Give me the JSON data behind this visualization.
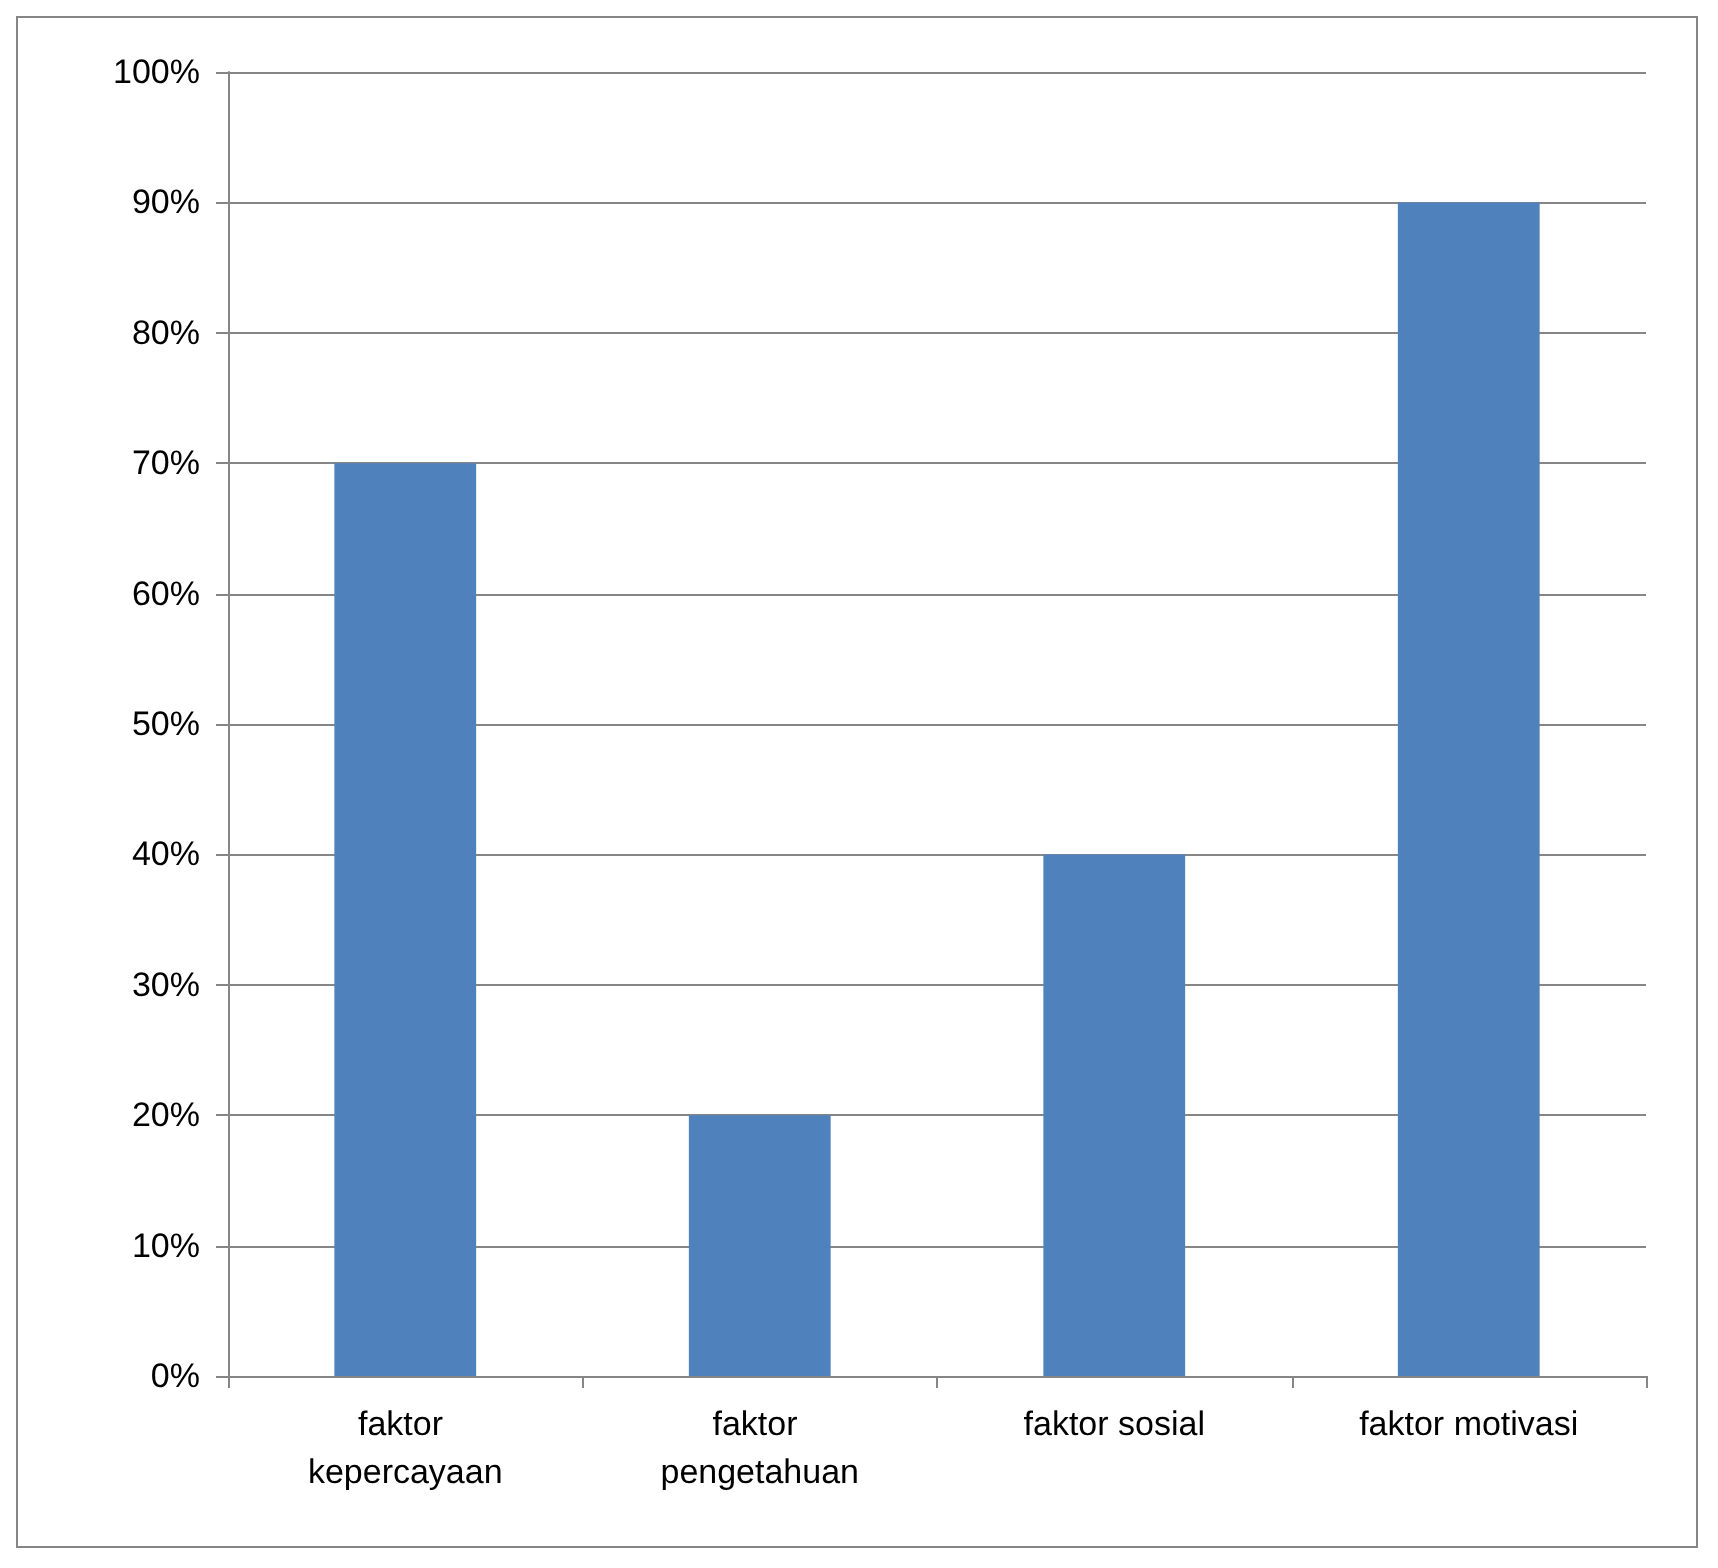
{
  "chart_data": {
    "type": "bar",
    "categories": [
      "faktor kepercayaan",
      "faktor pengetahuan",
      "faktor sosial",
      "faktor motivasi"
    ],
    "values": [
      70,
      20,
      40,
      90
    ],
    "color": "#4f81bd",
    "ylim": [
      0,
      100
    ],
    "yticks": [
      {
        "value": 0,
        "label": "0%"
      },
      {
        "value": 10,
        "label": "10%"
      },
      {
        "value": 20,
        "label": "20%"
      },
      {
        "value": 30,
        "label": "30%"
      },
      {
        "value": 40,
        "label": "40%"
      },
      {
        "value": 50,
        "label": "50%"
      },
      {
        "value": 60,
        "label": "60%"
      },
      {
        "value": 70,
        "label": "70%"
      },
      {
        "value": 80,
        "label": "80%"
      },
      {
        "value": 90,
        "label": "90%"
      },
      {
        "value": 100,
        "label": "100%"
      }
    ],
    "grid": "y"
  }
}
